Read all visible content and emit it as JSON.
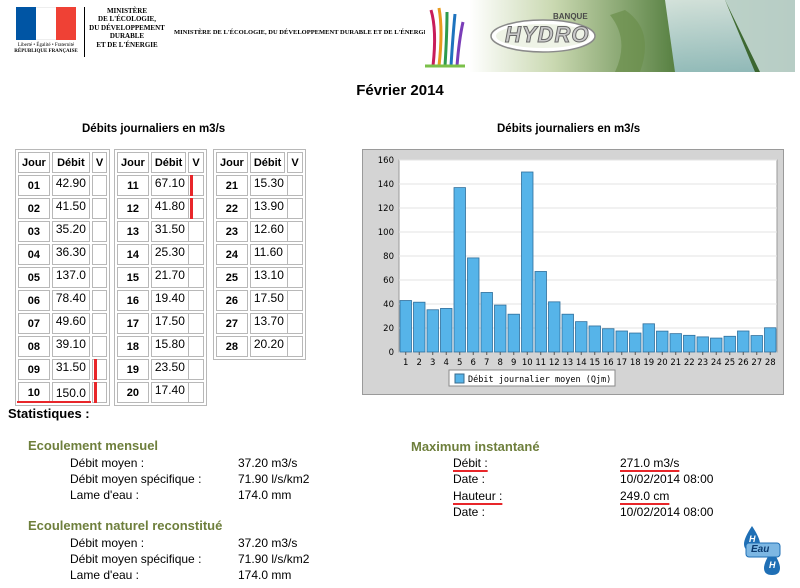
{
  "header": {
    "rf_lines": [
      "Liberté • Égalité • Fraternité",
      "RÉPUBLIQUE FRANÇAISE"
    ],
    "ministry_block": [
      "MINISTÈRE",
      "DE L'ÉCOLOGIE,",
      "DU DÉVELOPPEMENT",
      "DURABLE",
      "ET DE L'ÉNERGIE"
    ],
    "ministry_long": "MINISTÈRE DE L'ÉCOLOGIE, DU DÉVELOPPEMENT DURABLE ET DE L'ÉNERGIE",
    "banner_top": "BANQUE",
    "banner_main": "HYDRO"
  },
  "page_title": "Février 2014",
  "daily_flows": {
    "subtitle": "Débits journaliers en m3/s",
    "headers": [
      "Jour",
      "Débit",
      "V"
    ],
    "columns": [
      [
        [
          "01",
          "42.90"
        ],
        [
          "02",
          "41.50"
        ],
        [
          "03",
          "35.20"
        ],
        [
          "04",
          "36.30"
        ],
        [
          "05",
          "137.0"
        ],
        [
          "06",
          "78.40"
        ],
        [
          "07",
          "49.60"
        ],
        [
          "08",
          "39.10"
        ],
        [
          "09",
          "31.50"
        ],
        [
          "10",
          "150.0"
        ]
      ],
      [
        [
          "11",
          "67.10"
        ],
        [
          "12",
          "41.80"
        ],
        [
          "13",
          "31.50"
        ],
        [
          "14",
          "25.30"
        ],
        [
          "15",
          "21.70"
        ],
        [
          "16",
          "19.40"
        ],
        [
          "17",
          "17.50"
        ],
        [
          "18",
          "15.80"
        ],
        [
          "19",
          "23.50"
        ],
        [
          "20",
          "17.40"
        ]
      ],
      [
        [
          "21",
          "15.30"
        ],
        [
          "22",
          "13.90"
        ],
        [
          "23",
          "12.60"
        ],
        [
          "24",
          "11.60"
        ],
        [
          "25",
          "13.10"
        ],
        [
          "26",
          "17.50"
        ],
        [
          "27",
          "13.70"
        ],
        [
          "28",
          "20.20"
        ]
      ]
    ]
  },
  "chart_title": "Débits journaliers en m3/s",
  "chart_data": {
    "type": "bar",
    "title": "Débits journaliers en m3/s",
    "categories": [
      "1",
      "2",
      "3",
      "4",
      "5",
      "6",
      "7",
      "8",
      "9",
      "10",
      "11",
      "12",
      "13",
      "14",
      "15",
      "16",
      "17",
      "18",
      "19",
      "20",
      "21",
      "22",
      "23",
      "24",
      "25",
      "26",
      "27",
      "28"
    ],
    "series": [
      {
        "name": "Débit journalier moyen (Qjm)",
        "values": [
          42.9,
          41.5,
          35.2,
          36.3,
          137.0,
          78.4,
          49.6,
          39.1,
          31.5,
          150.0,
          67.1,
          41.8,
          31.5,
          25.3,
          21.7,
          19.4,
          17.5,
          15.8,
          23.5,
          17.4,
          15.3,
          13.9,
          12.6,
          11.6,
          13.1,
          17.5,
          13.7,
          20.2
        ]
      }
    ],
    "ylim": [
      0,
      160
    ],
    "yticks": [
      "0",
      "20",
      "40",
      "60",
      "80",
      "100",
      "120",
      "140",
      "160"
    ],
    "grid": true,
    "legend": "bottom",
    "bar_color": "#56b4e9",
    "plot_bg": "#ffffff",
    "frame_bg": "#d4d4d4"
  },
  "statistics": {
    "title": "Statistiques :",
    "monthly": {
      "title": "Ecoulement mensuel",
      "rows": [
        {
          "label": "Débit moyen :",
          "value": "37.20 m3/s"
        },
        {
          "label": "Débit moyen spécifique :",
          "value": "71.90 l/s/km2"
        },
        {
          "label": "Lame d'eau :",
          "value": "174.0 mm"
        }
      ]
    },
    "natural": {
      "title": "Ecoulement naturel reconstitué",
      "rows": [
        {
          "label": "Débit moyen :",
          "value": "37.20 m3/s"
        },
        {
          "label": "Débit moyen spécifique :",
          "value": "71.90 l/s/km2"
        },
        {
          "label": "Lame d'eau :",
          "value": "174.0 mm"
        }
      ]
    },
    "max": {
      "title": "Maximum instantané",
      "rows": [
        {
          "label": "Débit :",
          "value": "271.0 m3/s"
        },
        {
          "label": "Date :",
          "value": "10/02/2014 08:00"
        },
        {
          "label": "Hauteur :",
          "value": "249.0 cm"
        },
        {
          "label": "Date :",
          "value": "10/02/2014 08:00"
        }
      ]
    }
  },
  "logo_eau": {
    "top": "H",
    "middle": "Eau",
    "bottom": "H"
  },
  "colors": {
    "accent_green": "#6e7f3c",
    "highlight_red": "#e8262a",
    "flag_blue": "#0055a4",
    "flag_red": "#ef4135"
  }
}
